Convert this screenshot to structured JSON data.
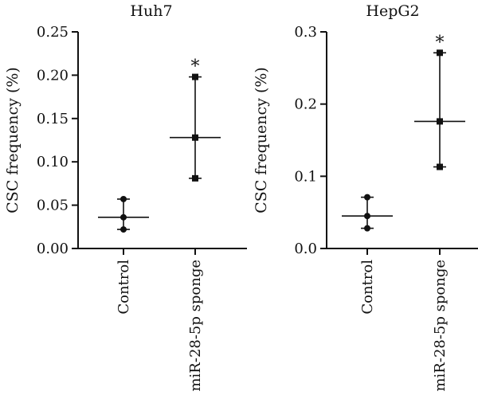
{
  "chart_data": [
    {
      "type": "scatter",
      "title": "Huh7",
      "ylabel": "CSC frequency (%)",
      "ylim": [
        0,
        0.25
      ],
      "yticks": [
        0.0,
        0.05,
        0.1,
        0.15,
        0.2,
        0.25
      ],
      "ytick_labels": [
        "0.00",
        "0.05",
        "0.10",
        "0.15",
        "0.20",
        "0.25"
      ],
      "categories": [
        "Control",
        "miR-28-5p sponge"
      ],
      "groups": [
        {
          "category": "Control",
          "marker": "circle",
          "points": [
            0.057,
            0.036,
            0.022
          ],
          "mean": 0.036,
          "low": 0.022,
          "high": 0.057,
          "annotation": ""
        },
        {
          "category": "miR-28-5p sponge",
          "marker": "square",
          "points": [
            0.198,
            0.128,
            0.081
          ],
          "mean": 0.128,
          "low": 0.081,
          "high": 0.198,
          "annotation": "*"
        }
      ]
    },
    {
      "type": "scatter",
      "title": "HepG2",
      "ylabel": "CSC frequency (%)",
      "ylim": [
        0,
        0.3
      ],
      "yticks": [
        0.0,
        0.1,
        0.2,
        0.3
      ],
      "ytick_labels": [
        "0.0",
        "0.1",
        "0.2",
        "0.3"
      ],
      "categories": [
        "Control",
        "miR-28-5p sponge"
      ],
      "groups": [
        {
          "category": "Control",
          "marker": "circle",
          "points": [
            0.071,
            0.045,
            0.028
          ],
          "mean": 0.045,
          "low": 0.028,
          "high": 0.071,
          "annotation": ""
        },
        {
          "category": "miR-28-5p sponge",
          "marker": "square",
          "points": [
            0.271,
            0.176,
            0.113
          ],
          "mean": 0.176,
          "low": 0.113,
          "high": 0.271,
          "annotation": "*"
        }
      ]
    }
  ]
}
